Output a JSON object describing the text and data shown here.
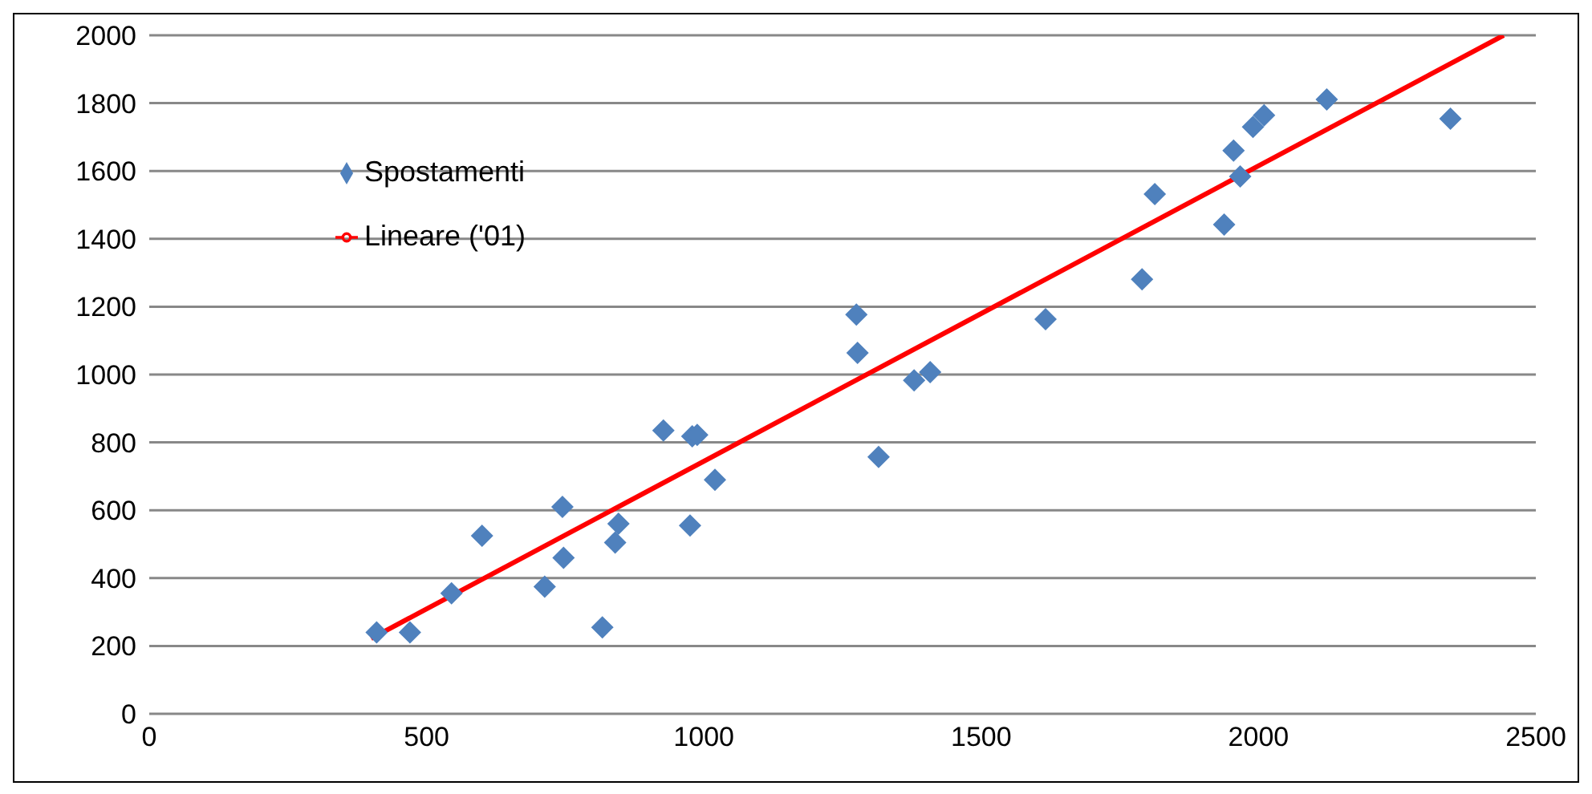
{
  "chart_data": {
    "type": "scatter",
    "xlim": [
      0,
      2500
    ],
    "xticks": [
      0,
      500,
      1000,
      1500,
      2000,
      2500
    ],
    "ylim": [
      0,
      2000
    ],
    "yticks": [
      0,
      200,
      400,
      600,
      800,
      1000,
      1200,
      1400,
      1600,
      1800,
      2000
    ],
    "grid": "y",
    "legend": "top left",
    "series": [
      {
        "name": "Spostamenti",
        "type": "scatter",
        "color": "#4f81bd",
        "marker": "diamond",
        "x": [
          410,
          470,
          545,
          600,
          713,
          745,
          747,
          817,
          840,
          846,
          927,
          975,
          979,
          988,
          1020,
          1275,
          1277,
          1315,
          1379,
          1408,
          1616,
          1790,
          1813,
          1938,
          1955,
          1967,
          1990,
          2010,
          2123,
          2346
        ],
        "values": [
          240,
          240,
          355,
          525,
          375,
          610,
          460,
          255,
          505,
          560,
          835,
          555,
          818,
          822,
          690,
          1177,
          1064,
          757,
          983,
          1007,
          1163,
          1281,
          1532,
          1442,
          1660,
          1584,
          1730,
          1764,
          1811,
          1754
        ]
      },
      {
        "name": "Lineare ('01)",
        "type": "line",
        "color": "#ff0000",
        "marker": "none",
        "line_style": "solid",
        "x": [
          400,
          2442
        ],
        "values": [
          222,
          2000
        ]
      }
    ]
  }
}
